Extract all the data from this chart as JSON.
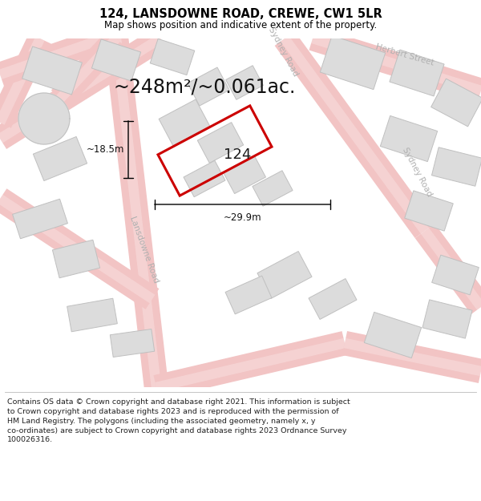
{
  "title": "124, LANSDOWNE ROAD, CREWE, CW1 5LR",
  "subtitle": "Map shows position and indicative extent of the property.",
  "footer": "Contains OS data © Crown copyright and database right 2021. This information is subject\nto Crown copyright and database rights 2023 and is reproduced with the permission of\nHM Land Registry. The polygons (including the associated geometry, namely x, y\nco-ordinates) are subject to Crown copyright and database rights 2023 Ordnance Survey\n100026316.",
  "area_text": "~248m²/~0.061ac.",
  "label_124": "124",
  "dim_width": "~29.9m",
  "dim_height": "~18.5m",
  "map_bg": "#f0efed",
  "road_fill": "#f2c4c4",
  "building_fill": "#dcdcdc",
  "building_edge": "#c0c0c0",
  "plot_stroke": "#cc0000",
  "road_label_color": "#b0b0b0",
  "title_fontsize": 10.5,
  "subtitle_fontsize": 8.5,
  "footer_fontsize": 6.8,
  "area_fontsize": 17,
  "label_fontsize": 13,
  "dim_fontsize": 8.5
}
